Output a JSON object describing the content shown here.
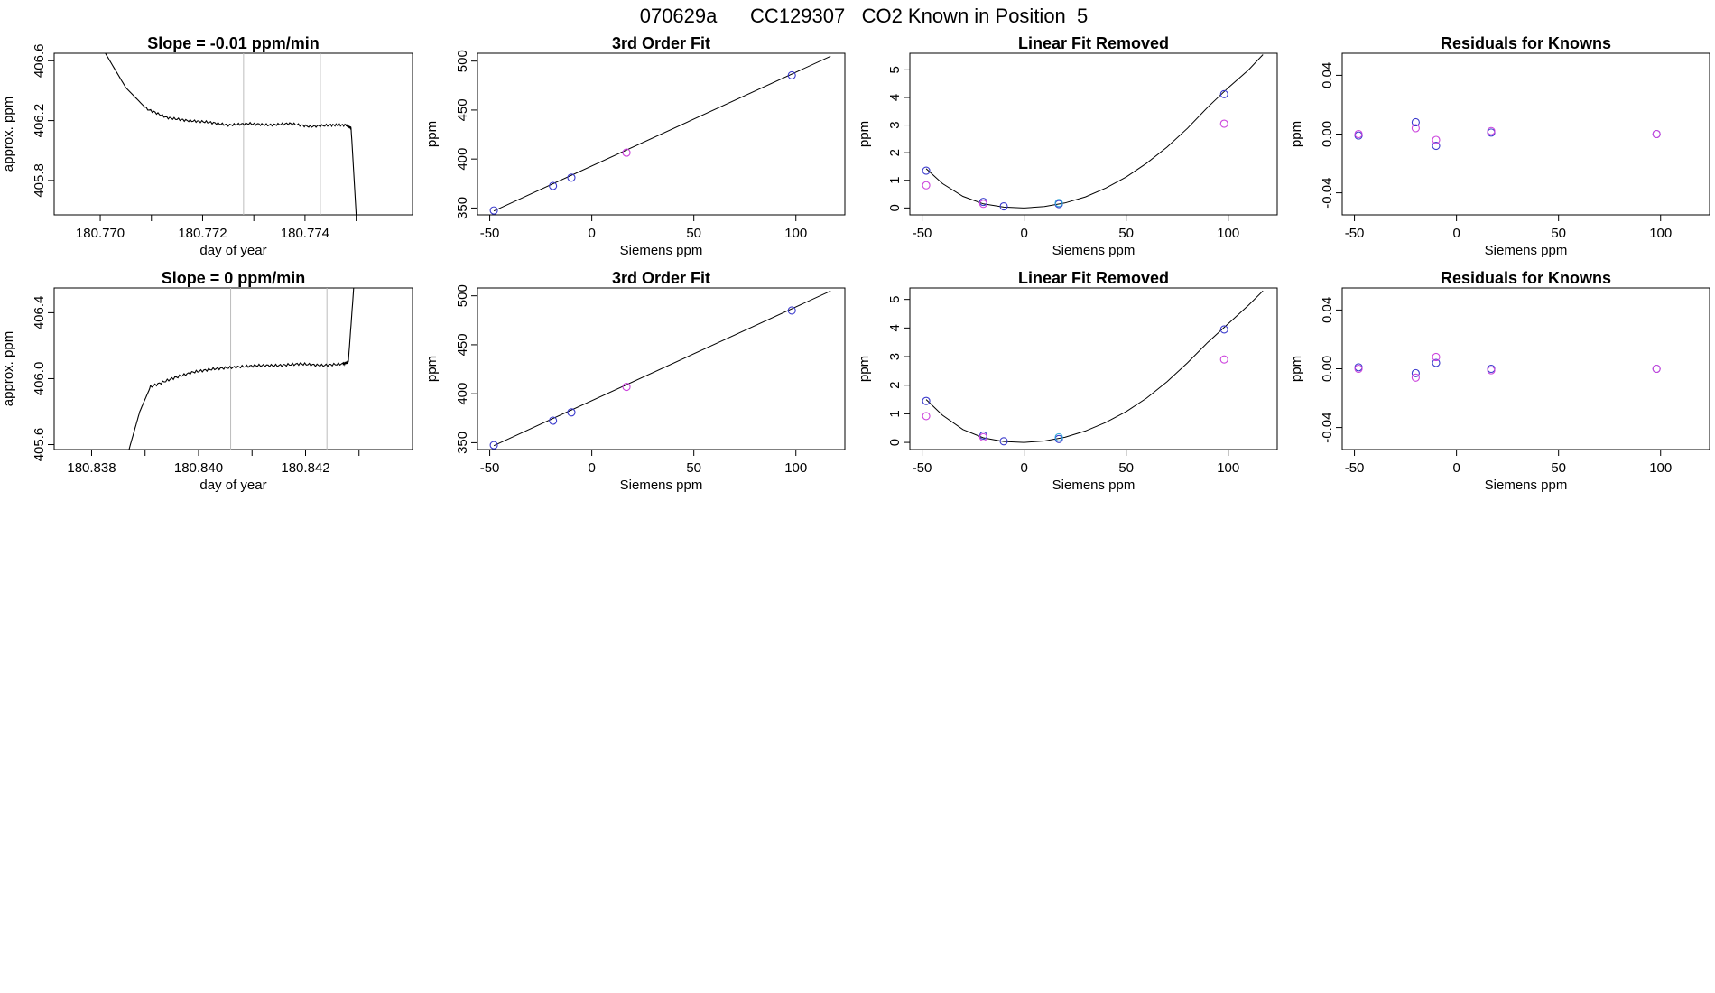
{
  "page": {
    "title": "070629a      CC129307   CO2 Known in Position  5"
  },
  "colors": {
    "line": "#000000",
    "vline": "#bdbdbd",
    "point_blue": "#3a3acc",
    "point_magenta": "#cc44dd",
    "point_cyan": "#33a8d8"
  },
  "chart_data": [
    {
      "id": "r1-trace",
      "type": "line",
      "title": "Slope =  -0.01  ppm/min",
      "xlabel": "day of year",
      "ylabel": "approx. ppm",
      "xlim": [
        180.7691,
        180.7761
      ],
      "ylim": [
        405.57,
        406.65
      ],
      "xticks": [
        180.77,
        180.771,
        180.772,
        180.773,
        180.774,
        180.775
      ],
      "xtick_labels": [
        "180.770",
        "",
        "180.772",
        "",
        "180.774",
        ""
      ],
      "yticks": [
        405.8,
        406.2,
        406.6
      ],
      "ytick_labels": [
        "405.8",
        "406.2",
        "406.6"
      ],
      "vlines": [
        180.7728,
        180.7743
      ],
      "series": [
        {
          "x": [
            180.7701,
            180.7705,
            180.7709,
            180.7713,
            180.7717,
            180.7721,
            180.7725,
            180.7729,
            180.7733,
            180.7737,
            180.7741,
            180.7745,
            180.7748,
            180.7749,
            180.775
          ],
          "y": [
            406.65,
            406.42,
            406.28,
            406.22,
            406.2,
            406.19,
            406.17,
            406.18,
            406.17,
            406.18,
            406.16,
            406.17,
            406.17,
            406.15,
            405.57
          ]
        }
      ]
    },
    {
      "id": "r1-fit",
      "type": "scatter",
      "title": "3rd Order Fit",
      "xlabel": "Siemens ppm",
      "ylabel": "ppm",
      "xlim": [
        -56,
        124
      ],
      "ylim": [
        343,
        508
      ],
      "xticks": [
        -50,
        0,
        50,
        100
      ],
      "xtick_labels": [
        "-50",
        "0",
        "50",
        "100"
      ],
      "yticks": [
        350,
        400,
        450,
        500
      ],
      "ytick_labels": [
        "350",
        "400",
        "450",
        "500"
      ],
      "curve": {
        "x": [
          -48,
          117
        ],
        "y": [
          347,
          505
        ]
      },
      "points": [
        {
          "x": -48,
          "y": 347.5,
          "c": "blue"
        },
        {
          "x": -19,
          "y": 372.5,
          "c": "blue"
        },
        {
          "x": -10,
          "y": 381.0,
          "c": "blue"
        },
        {
          "x": 17,
          "y": 406.5,
          "c": "magenta"
        },
        {
          "x": 98,
          "y": 485.5,
          "c": "blue"
        }
      ]
    },
    {
      "id": "r1-linear",
      "type": "scatter",
      "title": "Linear Fit Removed",
      "xlabel": "Siemens ppm",
      "ylabel": "ppm",
      "xlim": [
        -56,
        124
      ],
      "ylim": [
        -0.25,
        5.6
      ],
      "xticks": [
        -50,
        0,
        50,
        100
      ],
      "xtick_labels": [
        "-50",
        "0",
        "50",
        "100"
      ],
      "yticks": [
        0,
        1,
        2,
        3,
        4,
        5
      ],
      "ytick_labels": [
        "0",
        "1",
        "2",
        "3",
        "4",
        "5"
      ],
      "curve": {
        "x": [
          -48,
          -40,
          -30,
          -20,
          -10,
          0,
          10,
          20,
          30,
          40,
          50,
          60,
          70,
          80,
          90,
          100,
          110,
          117
        ],
        "y": [
          1.42,
          0.88,
          0.42,
          0.15,
          0.03,
          0.0,
          0.05,
          0.18,
          0.4,
          0.72,
          1.12,
          1.62,
          2.2,
          2.88,
          3.65,
          4.35,
          5.0,
          5.55
        ]
      },
      "points": [
        {
          "x": -48,
          "y": 1.35,
          "c": "blue"
        },
        {
          "x": -48,
          "y": 0.82,
          "c": "magenta"
        },
        {
          "x": -20,
          "y": 0.22,
          "c": "blue"
        },
        {
          "x": -20,
          "y": 0.15,
          "c": "magenta"
        },
        {
          "x": -10,
          "y": 0.06,
          "c": "blue"
        },
        {
          "x": 17,
          "y": 0.14,
          "c": "blue"
        },
        {
          "x": 17,
          "y": 0.18,
          "c": "cyan"
        },
        {
          "x": 98,
          "y": 4.12,
          "c": "blue"
        },
        {
          "x": 98,
          "y": 3.05,
          "c": "magenta"
        }
      ]
    },
    {
      "id": "r1-resid",
      "type": "scatter",
      "title": "Residuals for Knowns",
      "xlabel": "Siemens ppm",
      "ylabel": "ppm",
      "xlim": [
        -56,
        124
      ],
      "ylim": [
        -0.055,
        0.055
      ],
      "xticks": [
        -50,
        0,
        50,
        100
      ],
      "xtick_labels": [
        "-50",
        "0",
        "50",
        "100"
      ],
      "yticks": [
        -0.04,
        0.0,
        0.04
      ],
      "ytick_labels": [
        "-0.04",
        "0.00",
        "0.04"
      ],
      "points": [
        {
          "x": -48,
          "y": -0.001,
          "c": "blue"
        },
        {
          "x": -48,
          "y": 0.0,
          "c": "magenta"
        },
        {
          "x": -20,
          "y": 0.008,
          "c": "blue"
        },
        {
          "x": -20,
          "y": 0.004,
          "c": "magenta"
        },
        {
          "x": -10,
          "y": -0.008,
          "c": "blue"
        },
        {
          "x": -10,
          "y": -0.004,
          "c": "magenta"
        },
        {
          "x": 17,
          "y": 0.001,
          "c": "blue"
        },
        {
          "x": 17,
          "y": 0.002,
          "c": "magenta"
        },
        {
          "x": 98,
          "y": 0.0,
          "c": "blue"
        },
        {
          "x": 98,
          "y": 0.0,
          "c": "magenta"
        }
      ]
    },
    {
      "id": "r2-trace",
      "type": "line",
      "title": "Slope =  0  ppm/min",
      "xlabel": "day of year",
      "ylabel": "approx. ppm",
      "xlim": [
        180.8373,
        180.844
      ],
      "ylim": [
        405.57,
        406.55
      ],
      "xticks": [
        180.838,
        180.839,
        180.84,
        180.841,
        180.842,
        180.843
      ],
      "xtick_labels": [
        "180.838",
        "",
        "180.840",
        "",
        "180.842",
        ""
      ],
      "yticks": [
        405.6,
        406.0,
        406.4
      ],
      "ytick_labels": [
        "405.6",
        "406.0",
        "406.4"
      ],
      "vlines": [
        180.8406,
        180.8424
      ],
      "series": [
        {
          "x": [
            180.8387,
            180.8389,
            180.8391,
            180.8395,
            180.8399,
            180.8403,
            180.8407,
            180.8411,
            180.8415,
            180.8419,
            180.8423,
            180.8427,
            180.8428,
            180.8429
          ],
          "y": [
            405.57,
            405.8,
            405.95,
            406.0,
            406.04,
            406.06,
            406.07,
            406.08,
            406.08,
            406.09,
            406.08,
            406.09,
            406.1,
            406.55
          ]
        }
      ]
    },
    {
      "id": "r2-fit",
      "type": "scatter",
      "title": "3rd Order Fit",
      "xlabel": "Siemens ppm",
      "ylabel": "ppm",
      "xlim": [
        -56,
        124
      ],
      "ylim": [
        343,
        508
      ],
      "xticks": [
        -50,
        0,
        50,
        100
      ],
      "xtick_labels": [
        "-50",
        "0",
        "50",
        "100"
      ],
      "yticks": [
        350,
        400,
        450,
        500
      ],
      "ytick_labels": [
        "350",
        "400",
        "450",
        "500"
      ],
      "curve": {
        "x": [
          -48,
          117
        ],
        "y": [
          347,
          505
        ]
      },
      "points": [
        {
          "x": -48,
          "y": 347.5,
          "c": "blue"
        },
        {
          "x": -19,
          "y": 372.5,
          "c": "blue"
        },
        {
          "x": -10,
          "y": 381.0,
          "c": "blue"
        },
        {
          "x": 17,
          "y": 407.0,
          "c": "magenta"
        },
        {
          "x": 98,
          "y": 485.0,
          "c": "blue"
        }
      ]
    },
    {
      "id": "r2-linear",
      "type": "scatter",
      "title": "Linear Fit Removed",
      "xlabel": "Siemens ppm",
      "ylabel": "ppm",
      "xlim": [
        -56,
        124
      ],
      "ylim": [
        -0.25,
        5.4
      ],
      "xticks": [
        -50,
        0,
        50,
        100
      ],
      "xtick_labels": [
        "-50",
        "0",
        "50",
        "100"
      ],
      "yticks": [
        0,
        1,
        2,
        3,
        4,
        5
      ],
      "ytick_labels": [
        "0",
        "1",
        "2",
        "3",
        "4",
        "5"
      ],
      "curve": {
        "x": [
          -48,
          -40,
          -30,
          -20,
          -10,
          0,
          10,
          20,
          30,
          40,
          50,
          60,
          70,
          80,
          90,
          100,
          110,
          117
        ],
        "y": [
          1.5,
          0.95,
          0.45,
          0.16,
          0.03,
          0.0,
          0.05,
          0.18,
          0.4,
          0.7,
          1.08,
          1.55,
          2.12,
          2.78,
          3.5,
          4.15,
          4.8,
          5.3
        ]
      },
      "points": [
        {
          "x": -48,
          "y": 1.45,
          "c": "blue"
        },
        {
          "x": -48,
          "y": 0.92,
          "c": "magenta"
        },
        {
          "x": -20,
          "y": 0.24,
          "c": "blue"
        },
        {
          "x": -20,
          "y": 0.18,
          "c": "magenta"
        },
        {
          "x": -10,
          "y": 0.04,
          "c": "blue"
        },
        {
          "x": 17,
          "y": 0.12,
          "c": "blue"
        },
        {
          "x": 17,
          "y": 0.18,
          "c": "cyan"
        },
        {
          "x": 98,
          "y": 3.95,
          "c": "blue"
        },
        {
          "x": 98,
          "y": 2.9,
          "c": "magenta"
        }
      ]
    },
    {
      "id": "r2-resid",
      "type": "scatter",
      "title": "Residuals for Knowns",
      "xlabel": "Siemens ppm",
      "ylabel": "ppm",
      "xlim": [
        -56,
        124
      ],
      "ylim": [
        -0.055,
        0.055
      ],
      "xticks": [
        -50,
        0,
        50,
        100
      ],
      "xtick_labels": [
        "-50",
        "0",
        "50",
        "100"
      ],
      "yticks": [
        -0.04,
        0.0,
        0.04
      ],
      "ytick_labels": [
        "-0.04",
        "0.00",
        "0.04"
      ],
      "points": [
        {
          "x": -48,
          "y": 0.001,
          "c": "blue"
        },
        {
          "x": -48,
          "y": 0.0,
          "c": "magenta"
        },
        {
          "x": -20,
          "y": -0.003,
          "c": "blue"
        },
        {
          "x": -20,
          "y": -0.006,
          "c": "magenta"
        },
        {
          "x": -10,
          "y": 0.004,
          "c": "blue"
        },
        {
          "x": -10,
          "y": 0.008,
          "c": "magenta"
        },
        {
          "x": 17,
          "y": 0.0,
          "c": "blue"
        },
        {
          "x": 17,
          "y": -0.001,
          "c": "magenta"
        },
        {
          "x": 98,
          "y": 0.0,
          "c": "blue"
        },
        {
          "x": 98,
          "y": 0.0,
          "c": "magenta"
        }
      ]
    }
  ]
}
